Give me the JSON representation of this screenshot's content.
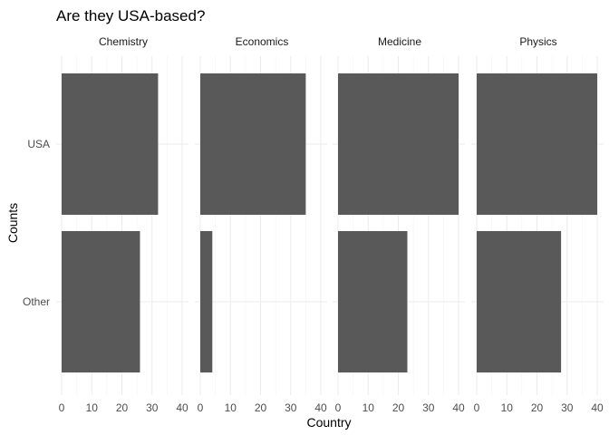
{
  "chart_data": {
    "type": "bar",
    "orientation": "horizontal",
    "faceted": true,
    "title": "Are they USA-based?",
    "xlabel": "Country",
    "ylabel": "Counts",
    "categories": [
      "USA",
      "Other"
    ],
    "xlim": [
      0,
      40
    ],
    "xticks": [
      0,
      10,
      20,
      30,
      40
    ],
    "grid": true,
    "bar_color": "#595959",
    "panels": [
      {
        "facet": "Chemistry",
        "values": [
          32,
          26
        ]
      },
      {
        "facet": "Economics",
        "values": [
          35,
          4
        ]
      },
      {
        "facet": "Medicine",
        "values": [
          40,
          23
        ]
      },
      {
        "facet": "Physics",
        "values": [
          40,
          28
        ]
      }
    ]
  }
}
